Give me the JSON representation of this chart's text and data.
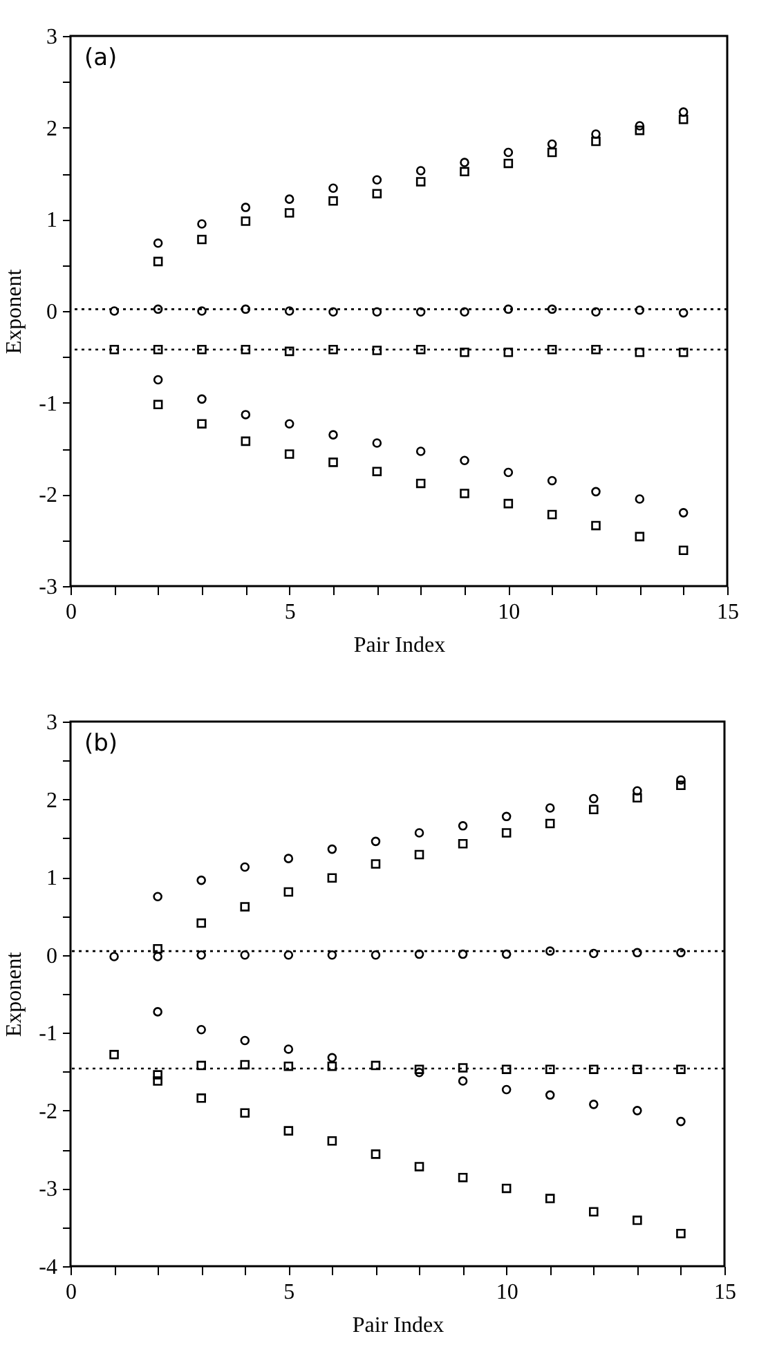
{
  "chart_data": [
    {
      "type": "scatter",
      "xlabel": "Pair Index",
      "ylabel": "Exponent",
      "annotations": [
        "(a)"
      ],
      "xlim": [
        0,
        15
      ],
      "ylim": [
        -3,
        3
      ],
      "xticks": [
        0,
        {
          "value": 1,
          "label": null
        },
        {
          "value": 2,
          "label": null
        },
        {
          "value": 3,
          "label": null
        },
        {
          "value": 4,
          "label": null
        },
        5,
        {
          "value": 6,
          "label": null
        },
        {
          "value": 7,
          "label": null
        },
        {
          "value": 8,
          "label": null
        },
        {
          "value": 9,
          "label": null
        },
        10,
        {
          "value": 11,
          "label": null
        },
        {
          "value": 12,
          "label": null
        },
        {
          "value": 13,
          "label": null
        },
        {
          "value": 14,
          "label": null
        },
        15
      ],
      "yticks": [
        -3,
        {
          "value": -2.5,
          "label": null
        },
        -2,
        {
          "value": -1.5,
          "label": null
        },
        -1,
        {
          "value": -0.5,
          "label": null
        },
        0,
        {
          "value": 0.5,
          "label": null
        },
        1,
        {
          "value": 1.5,
          "label": null
        },
        2,
        {
          "value": 2.5,
          "label": null
        },
        3
      ],
      "ref_lines": [
        {
          "axis": "y",
          "value": 0.02,
          "line_style": "dotted"
        },
        {
          "axis": "y",
          "value": -0.42,
          "line_style": "dotted"
        }
      ],
      "series": [
        {
          "marker": "circle",
          "color": "#000000",
          "x": [
            1,
            2,
            3,
            4,
            5,
            6,
            7,
            8,
            9,
            10,
            11,
            12,
            13,
            14
          ],
          "values": [
            0,
            0.74,
            0.95,
            1.13,
            1.22,
            1.34,
            1.43,
            1.53,
            1.62,
            1.73,
            1.82,
            1.93,
            2.02,
            2.17
          ]
        },
        {
          "marker": "square",
          "color": "#000000",
          "x": [
            1,
            2,
            3,
            4,
            5,
            6,
            7,
            8,
            9,
            10,
            11,
            12,
            13,
            14
          ],
          "values": [
            -0.42,
            0.54,
            0.78,
            0.98,
            1.07,
            1.2,
            1.28,
            1.41,
            1.52,
            1.61,
            1.73,
            1.85,
            1.97,
            2.09
          ]
        },
        {
          "marker": "circle",
          "color": "#000000",
          "x": [
            2,
            3,
            4,
            5,
            6,
            7,
            8,
            9,
            10,
            11,
            12,
            13,
            14
          ],
          "values": [
            0.02,
            0,
            0.02,
            0,
            -0.01,
            -0.01,
            -0.01,
            -0.01,
            0.02,
            0.02,
            -0.01,
            0.01,
            -0.02
          ]
        },
        {
          "marker": "square",
          "color": "#000000",
          "x": [
            2,
            3,
            4,
            5,
            6,
            7,
            8,
            9,
            10,
            11,
            12,
            13,
            14
          ],
          "values": [
            -0.42,
            -0.42,
            -0.42,
            -0.44,
            -0.42,
            -0.43,
            -0.42,
            -0.45,
            -0.45,
            -0.42,
            -0.42,
            -0.45,
            -0.45
          ]
        },
        {
          "marker": "circle",
          "color": "#000000",
          "x": [
            2,
            3,
            4,
            5,
            6,
            7,
            8,
            9,
            10,
            11,
            12,
            13,
            14
          ],
          "values": [
            -0.75,
            -0.96,
            -1.13,
            -1.23,
            -1.35,
            -1.44,
            -1.53,
            -1.63,
            -1.76,
            -1.85,
            -1.97,
            -2.05,
            -2.2
          ]
        },
        {
          "marker": "square",
          "color": "#000000",
          "x": [
            2,
            3,
            4,
            5,
            6,
            7,
            8,
            9,
            10,
            11,
            12,
            13,
            14
          ],
          "values": [
            -1.02,
            -1.23,
            -1.42,
            -1.56,
            -1.65,
            -1.75,
            -1.88,
            -1.99,
            -2.1,
            -2.22,
            -2.34,
            -2.46,
            -2.61
          ]
        }
      ]
    },
    {
      "type": "scatter",
      "xlabel": "Pair Index",
      "ylabel": "Exponent",
      "annotations": [
        "(b)"
      ],
      "xlim": [
        0,
        15
      ],
      "ylim": [
        -4,
        3
      ],
      "xticks": [
        0,
        {
          "value": 1,
          "label": null
        },
        {
          "value": 2,
          "label": null
        },
        {
          "value": 3,
          "label": null
        },
        {
          "value": 4,
          "label": null
        },
        5,
        {
          "value": 6,
          "label": null
        },
        {
          "value": 7,
          "label": null
        },
        {
          "value": 8,
          "label": null
        },
        {
          "value": 9,
          "label": null
        },
        10,
        {
          "value": 11,
          "label": null
        },
        {
          "value": 12,
          "label": null
        },
        {
          "value": 13,
          "label": null
        },
        {
          "value": 14,
          "label": null
        },
        15
      ],
      "yticks": [
        -4,
        {
          "value": -3.5,
          "label": null
        },
        -3,
        {
          "value": -2.5,
          "label": null
        },
        -2,
        {
          "value": -1.5,
          "label": null
        },
        -1,
        {
          "value": -0.5,
          "label": null
        },
        0,
        {
          "value": 0.5,
          "label": null
        },
        1,
        {
          "value": 1.5,
          "label": null
        },
        2,
        {
          "value": 2.5,
          "label": null
        },
        3
      ],
      "ref_lines": [
        {
          "axis": "y",
          "value": 0.05,
          "line_style": "dotted"
        },
        {
          "axis": "y",
          "value": -1.46,
          "line_style": "dotted"
        }
      ],
      "series": [
        {
          "marker": "circle",
          "color": "#000000",
          "x": [
            1,
            2,
            3,
            4,
            5,
            6,
            7,
            8,
            9,
            10,
            11,
            12,
            13,
            14
          ],
          "values": [
            -0.02,
            0.75,
            0.96,
            1.13,
            1.24,
            1.36,
            1.46,
            1.57,
            1.66,
            1.78,
            1.89,
            2.01,
            2.11,
            2.25
          ]
        },
        {
          "marker": "square",
          "color": "#000000",
          "x": [
            1,
            2,
            3,
            4,
            5,
            6,
            7,
            8,
            9,
            10,
            11,
            12,
            13,
            14
          ],
          "values": [
            -1.28,
            0.08,
            0.41,
            0.62,
            0.81,
            0.99,
            1.17,
            1.29,
            1.43,
            1.57,
            1.69,
            1.87,
            2.02,
            2.18
          ]
        },
        {
          "marker": "circle",
          "color": "#000000",
          "x": [
            2,
            3,
            4,
            5,
            6,
            7,
            8,
            9,
            10,
            11,
            12,
            13,
            14
          ],
          "values": [
            -0.02,
            0,
            0,
            0,
            0,
            0,
            0.01,
            0.01,
            0.01,
            0.05,
            0.02,
            0.03,
            0.03
          ]
        },
        {
          "marker": "square",
          "color": "#000000",
          "x": [
            2,
            3,
            4,
            5,
            6,
            7,
            8,
            9,
            10,
            11,
            12,
            13,
            14
          ],
          "values": [
            -1.54,
            -1.42,
            -1.41,
            -1.43,
            -1.43,
            -1.42,
            -1.47,
            -1.45,
            -1.47,
            -1.47,
            -1.47,
            -1.47,
            -1.47
          ]
        },
        {
          "marker": "circle",
          "color": "#000000",
          "x": [
            2,
            3,
            4,
            5,
            6,
            8,
            9,
            10,
            11,
            12,
            13,
            14
          ],
          "values": [
            -0.73,
            -0.96,
            -1.1,
            -1.21,
            -1.32,
            -1.51,
            -1.62,
            -1.73,
            -1.8,
            -1.92,
            -2.0,
            -2.14
          ]
        },
        {
          "marker": "square",
          "color": "#000000",
          "x": [
            2,
            3,
            4,
            5,
            6,
            7,
            8,
            9,
            10,
            11,
            12,
            13,
            14
          ],
          "values": [
            -1.62,
            -1.84,
            -2.03,
            -2.26,
            -2.39,
            -2.56,
            -2.72,
            -2.86,
            -3.0,
            -3.13,
            -3.3,
            -3.41,
            -3.58
          ]
        }
      ]
    }
  ]
}
